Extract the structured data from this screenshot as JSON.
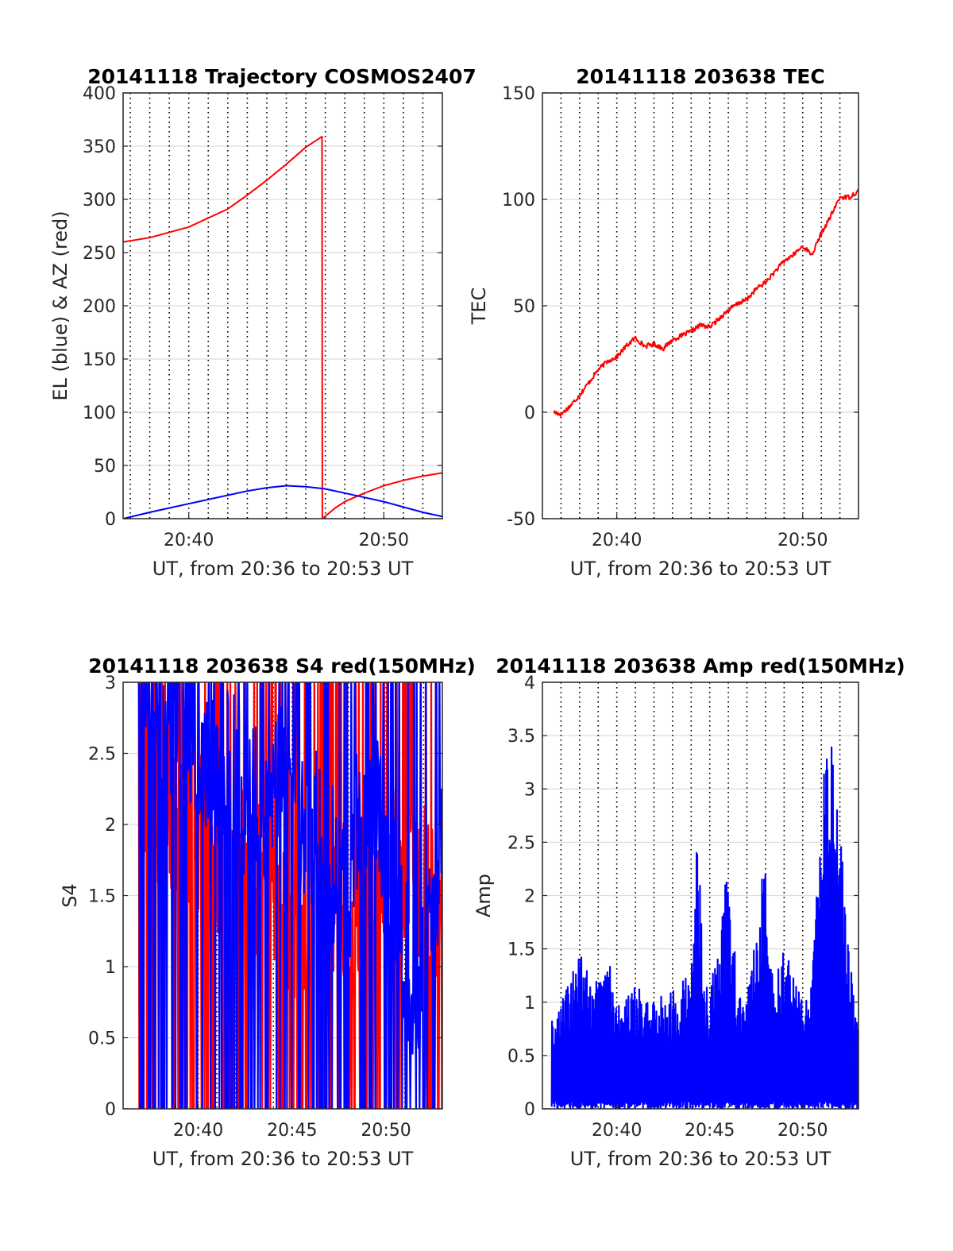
{
  "figure": {
    "background": "#ffffff",
    "panels_count": 4
  },
  "chart_data": [
    {
      "type": "line",
      "title": "20141118 Trajectory COSMOS2407",
      "xlabel": "UT, from 20:36 to 20:53 UT",
      "ylabel": "EL (blue) & AZ (red)",
      "xlim": [
        "20:36:38",
        "20:53:00"
      ],
      "ylim": [
        0,
        400
      ],
      "yticks": [
        0,
        50,
        100,
        150,
        200,
        250,
        300,
        350,
        400
      ],
      "xticks": [
        {
          "t": "20:40",
          "label": "20:40"
        },
        {
          "t": "20:50",
          "label": "20:50"
        }
      ],
      "vertical_dotted_minutes": true,
      "grid": "horizontal",
      "series": [
        {
          "color": "#ff0000",
          "x": [
            "20:36:38",
            "20:38:00",
            "20:40:00",
            "20:42:00",
            "20:43:00",
            "20:44:00",
            "20:45:00",
            "20:46:00",
            "20:46:50",
            "20:46:51",
            "20:47:30",
            "20:48:00",
            "20:49:00",
            "20:50:00",
            "20:51:00",
            "20:52:00",
            "20:53:00"
          ],
          "values": [
            260,
            264,
            274,
            291,
            304,
            318,
            333,
            349,
            359,
            0,
            10,
            16,
            24,
            31,
            36,
            40,
            43
          ]
        },
        {
          "color": "#0000ff",
          "x": [
            "20:36:38",
            "20:38:00",
            "20:40:00",
            "20:42:00",
            "20:43:00",
            "20:44:00",
            "20:45:00",
            "20:46:00",
            "20:47:00",
            "20:48:00",
            "20:49:00",
            "20:50:00",
            "20:51:00",
            "20:52:00",
            "20:53:00"
          ],
          "values": [
            0,
            6,
            14,
            22,
            26,
            29,
            31,
            30,
            28,
            24,
            20,
            16,
            11,
            6,
            2
          ]
        }
      ]
    },
    {
      "type": "line",
      "title": "20141118 203638 TEC",
      "xlabel": "UT, from 20:36 to 20:53 UT",
      "ylabel": "TEC",
      "xlim": [
        "20:36:00",
        "20:53:00"
      ],
      "ylim": [
        -50,
        150
      ],
      "yticks": [
        -50,
        0,
        50,
        100,
        150
      ],
      "xticks": [
        {
          "t": "20:40",
          "label": "20:40"
        },
        {
          "t": "20:50",
          "label": "20:50"
        }
      ],
      "vertical_dotted_minutes": true,
      "grid": "horizontal",
      "series": [
        {
          "color": "#ff0000",
          "x": [
            "20:36:38",
            "20:37:00",
            "20:37:30",
            "20:38:00",
            "20:38:30",
            "20:39:00",
            "20:39:30",
            "20:40:00",
            "20:40:30",
            "20:41:00",
            "20:41:30",
            "20:42:00",
            "20:42:30",
            "20:43:00",
            "20:43:30",
            "20:44:00",
            "20:44:30",
            "20:45:00",
            "20:45:30",
            "20:46:00",
            "20:46:30",
            "20:47:00",
            "20:47:30",
            "20:48:00",
            "20:48:30",
            "20:49:00",
            "20:49:30",
            "20:50:00",
            "20:50:30",
            "20:51:00",
            "20:51:30",
            "20:52:00",
            "20:52:30",
            "20:53:00"
          ],
          "values": [
            0,
            -1,
            3,
            8,
            14,
            20,
            24,
            26,
            31,
            35,
            31,
            32,
            30,
            34,
            36,
            38,
            41,
            40,
            44,
            48,
            51,
            53,
            58,
            61,
            66,
            71,
            74,
            78,
            74,
            84,
            92,
            101,
            101,
            104
          ]
        }
      ]
    },
    {
      "type": "line",
      "title": "20141118 203638 S4 red(150MHz)",
      "xlabel": "UT, from 20:36 to 20:53 UT",
      "ylabel": "S4",
      "xlim": [
        "20:36:00",
        "20:53:00"
      ],
      "ylim": [
        0,
        3
      ],
      "yticks": [
        0,
        0.5,
        1,
        1.5,
        2,
        2.5,
        3
      ],
      "xticks": [
        {
          "t": "20:40",
          "label": "20:40"
        },
        {
          "t": "20:45",
          "label": "20:45"
        },
        {
          "t": "20:50",
          "label": "20:50"
        }
      ],
      "vertical_dotted_minutes": true,
      "grid": "horizontal",
      "series": [
        {
          "color": "#ff0000",
          "x": [
            "20:37",
            "20:38",
            "20:39",
            "20:40",
            "20:41",
            "20:42",
            "20:43",
            "20:44",
            "20:45",
            "20:46",
            "20:47",
            "20:48",
            "20:49",
            "20:50",
            "20:51",
            "20:52",
            "20:53"
          ],
          "values": [
            2.3,
            2.1,
            2.0,
            1.9,
            1.8,
            1.8,
            1.6,
            1.5,
            1.2,
            1.5,
            1.6,
            1.1,
            1.6,
            1.8,
            1.5,
            1.7,
            1.2
          ]
        },
        {
          "color": "#0000ff",
          "x": [
            "20:37",
            "20:38",
            "20:39",
            "20:40",
            "20:41",
            "20:42",
            "20:43",
            "20:44",
            "20:45",
            "20:46",
            "20:47",
            "20:48",
            "20:49",
            "20:50",
            "20:51",
            "20:52",
            "20:53"
          ],
          "values": [
            2.9,
            2.8,
            2.6,
            2.6,
            2.4,
            2.3,
            2.1,
            2.3,
            2.2,
            2.0,
            1.7,
            1.6,
            2.3,
            1.8,
            1.0,
            0.9,
            2.0
          ]
        }
      ]
    },
    {
      "type": "line",
      "title": "20141118 203638 Amp red(150MHz)",
      "xlabel": "UT, from 20:36 to 20:53 UT",
      "ylabel": "Amp",
      "xlim": [
        "20:36:00",
        "20:53:00"
      ],
      "ylim": [
        0,
        4
      ],
      "yticks": [
        0,
        0.5,
        1,
        1.5,
        2,
        2.5,
        3,
        3.5,
        4
      ],
      "xticks": [
        {
          "t": "20:40",
          "label": "20:40"
        },
        {
          "t": "20:45",
          "label": "20:45"
        },
        {
          "t": "20:50",
          "label": "20:50"
        }
      ],
      "vertical_dotted_minutes": true,
      "grid": "horizontal",
      "series": [
        {
          "color": "#0000ff",
          "x": [
            "20:36:30",
            "20:37:00",
            "20:38:00",
            "20:39:00",
            "20:39:30",
            "20:40:00",
            "20:41:00",
            "20:42:00",
            "20:43:00",
            "20:44:00",
            "20:44:20",
            "20:44:40",
            "20:45:00",
            "20:46:00",
            "20:46:30",
            "20:47:00",
            "20:48:00",
            "20:48:20",
            "20:49:00",
            "20:50:00",
            "20:50:30",
            "20:51:00",
            "20:51:15",
            "20:51:30",
            "20:52:00",
            "20:52:30",
            "20:53:00"
          ],
          "values": [
            0.85,
            1.0,
            1.47,
            1.2,
            1.55,
            0.95,
            1.15,
            1.05,
            1.1,
            1.3,
            2.83,
            1.2,
            1.1,
            2.3,
            1.2,
            1.05,
            2.48,
            1.3,
            1.5,
            1.05,
            1.3,
            2.8,
            3.65,
            3.5,
            2.7,
            1.4,
            1.0
          ]
        }
      ]
    }
  ]
}
